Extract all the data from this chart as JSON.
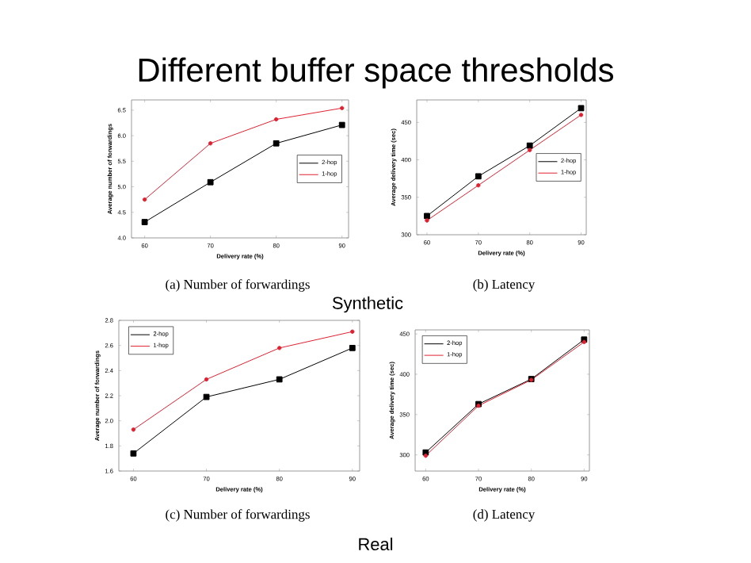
{
  "chart_data": [
    {
      "type": "line",
      "title": "Different buffer space thresholds",
      "xlabel": "Delivery rate (%)",
      "ylabel": "Average number of forwardings",
      "x": [
        60,
        70,
        80,
        90
      ],
      "xlim": [
        58,
        91
      ],
      "ylim": [
        4.0,
        6.7
      ],
      "xticks": [
        60,
        70,
        80,
        90
      ],
      "yticks": [
        {
          "value": 4.0,
          "label": "4.0"
        },
        4.5,
        {
          "value": 5.0,
          "label": "5.0"
        },
        5.5,
        {
          "value": 6.0,
          "label": "6.0"
        },
        6.5
      ],
      "legend": "right",
      "annotations": [
        "(a) Number of forwardings",
        "Synthetic"
      ],
      "series": [
        {
          "name": "2-hop",
          "color": "#000000",
          "marker": "square",
          "values": [
            4.31,
            5.09,
            5.85,
            6.21
          ]
        },
        {
          "name": "1-hop",
          "color": "#e02030",
          "marker": "circle",
          "values": [
            4.75,
            5.85,
            6.32,
            6.54
          ]
        }
      ]
    },
    {
      "type": "line",
      "xlabel": "Delivery rate (%)",
      "ylabel": "Average delivery time (sec)",
      "x": [
        60,
        70,
        80,
        90
      ],
      "xlim": [
        58,
        91
      ],
      "ylim": [
        300,
        480
      ],
      "xticks": [
        60,
        70,
        80,
        90
      ],
      "yticks": [
        300,
        350,
        400,
        450
      ],
      "legend": "right",
      "annotations": [
        "(b) Latency"
      ],
      "series": [
        {
          "name": "2-hop",
          "color": "#000000",
          "marker": "square",
          "values": [
            325,
            378,
            419,
            469
          ]
        },
        {
          "name": "1-hop",
          "color": "#e02030",
          "marker": "circle",
          "values": [
            319,
            366,
            413,
            460
          ]
        }
      ]
    },
    {
      "type": "line",
      "xlabel": "Delivery rate (%)",
      "ylabel": "Average number of forwardings",
      "x": [
        60,
        70,
        80,
        90
      ],
      "xlim": [
        58,
        91
      ],
      "ylim": [
        1.6,
        2.8
      ],
      "xticks": [
        60,
        70,
        80,
        90
      ],
      "yticks": [
        1.6,
        1.8,
        {
          "value": 2.0,
          "label": "2.0"
        },
        2.2,
        2.4,
        2.6,
        2.8
      ],
      "legend": "top left",
      "annotations": [
        "(c) Number of forwardings",
        "Real"
      ],
      "series": [
        {
          "name": "2-hop",
          "color": "#000000",
          "marker": "square",
          "values": [
            1.74,
            2.19,
            2.33,
            2.58
          ]
        },
        {
          "name": "1-hop",
          "color": "#e02030",
          "marker": "circle",
          "values": [
            1.93,
            2.33,
            2.58,
            2.71
          ]
        }
      ]
    },
    {
      "type": "line",
      "xlabel": "Delivery rate (%)",
      "ylabel": "Average delivery time (sec)",
      "x": [
        60,
        70,
        80,
        90
      ],
      "xlim": [
        58,
        91
      ],
      "ylim": [
        280,
        455
      ],
      "xticks": [
        60,
        70,
        80,
        90
      ],
      "yticks": [
        300,
        350,
        400,
        450
      ],
      "legend": "top left",
      "annotations": [
        "(d) Latency"
      ],
      "series": [
        {
          "name": "2-hop",
          "color": "#000000",
          "marker": "square",
          "values": [
            303,
            363,
            394,
            443
          ]
        },
        {
          "name": "1-hop",
          "color": "#e02030",
          "marker": "circle",
          "values": [
            299,
            361,
            393,
            440
          ]
        }
      ]
    }
  ]
}
